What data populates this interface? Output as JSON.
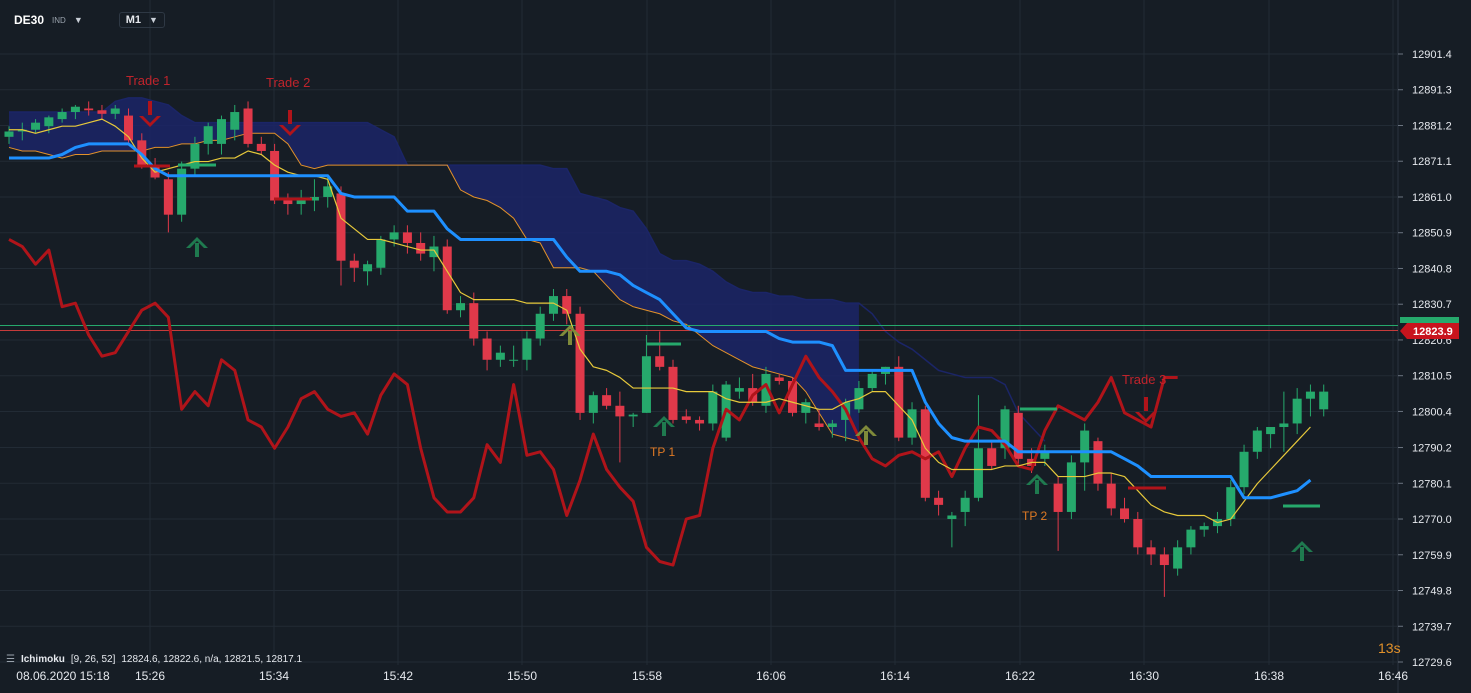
{
  "toolbar": {
    "symbol": "DE30",
    "symbol_type": "IND",
    "timeframe": "M1"
  },
  "indicator": {
    "name": "Ichimoku",
    "params": "[9, 26, 52]",
    "values": "12824.6,  12822.6,  n/a,  12821.5,  12817.1"
  },
  "countdown": "13s",
  "price_scale": {
    "labels": [
      "12901.4",
      "12891.3",
      "12881.2",
      "12871.1",
      "12861.0",
      "12850.9",
      "12840.8",
      "12830.7",
      "12820.6",
      "12810.5",
      "12800.4",
      "12790.2",
      "12780.1",
      "12770.0",
      "12759.9",
      "12749.8",
      "12739.7",
      "12729.6"
    ],
    "current_price": "12823.9"
  },
  "time_axis": {
    "labels": [
      "08.06.2020  15:18",
      "15:26",
      "15:34",
      "15:42",
      "15:50",
      "15:58",
      "16:06",
      "16:14",
      "16:22",
      "16:30",
      "16:38",
      "16:46"
    ]
  },
  "annotations": {
    "trade1": "Trade 1",
    "trade2": "Trade 2",
    "trade3": "Trade 3",
    "tp1": "TP 1",
    "tp2": "TP 2"
  },
  "colors": {
    "background": "#161d25",
    "grid": "#222b35",
    "bull": "#26a96c",
    "bear": "#e0394a",
    "tenkan": "#e7c93b",
    "kijun": "#1e90ff",
    "chikou": "#b0141a",
    "kumo_fill": "#1b2567",
    "kumo_line": "#e2912a",
    "buy_arrow": "#1f7a4f",
    "sell_arrow": "#b0141a",
    "trade_label": "#c0242c",
    "tp_label": "#e07a24",
    "current_line": "#c63b3b"
  },
  "chart_data": {
    "type": "candlestick",
    "ylim": [
      12725,
      12910
    ],
    "time_labels": [
      "15:18",
      "15:26",
      "15:34",
      "15:42",
      "15:50",
      "15:58",
      "16:06",
      "16:14",
      "16:22",
      "16:30",
      "16:38",
      "16:46"
    ],
    "candles_ohlc": [
      [
        12878.0,
        12881.0,
        12876.0,
        12879.5
      ],
      [
        12879.5,
        12882.0,
        12877.0,
        12880.0
      ],
      [
        12880.0,
        12883.0,
        12879.0,
        12882.0
      ],
      [
        12881.0,
        12884.0,
        12879.0,
        12883.5
      ],
      [
        12883.0,
        12886.0,
        12882.0,
        12885.0
      ],
      [
        12885.0,
        12887.0,
        12883.0,
        12886.5
      ],
      [
        12886.0,
        12888.0,
        12884.0,
        12885.5
      ],
      [
        12885.5,
        12887.0,
        12883.0,
        12884.5
      ],
      [
        12884.5,
        12887.0,
        12883.0,
        12886.0
      ],
      [
        12884.0,
        12886.0,
        12876.0,
        12877.0
      ],
      [
        12877.0,
        12879.0,
        12869.0,
        12870.0
      ],
      [
        12870.0,
        12872.0,
        12866.0,
        12866.5
      ],
      [
        12866.0,
        12868.0,
        12851.0,
        12856.0
      ],
      [
        12856.0,
        12871.0,
        12854.0,
        12869.0
      ],
      [
        12869.0,
        12878.0,
        12867.0,
        12876.0
      ],
      [
        12876.0,
        12882.0,
        12873.0,
        12881.0
      ],
      [
        12876.0,
        12884.0,
        12873.0,
        12883.0
      ],
      [
        12880.0,
        12887.0,
        12877.0,
        12885.0
      ],
      [
        12886.0,
        12888.0,
        12875.0,
        12876.0
      ],
      [
        12876.0,
        12878.0,
        12873.0,
        12874.0
      ],
      [
        12874.0,
        12876.0,
        12859.0,
        12860.0
      ],
      [
        12860.0,
        12862.0,
        12856.0,
        12859.0
      ],
      [
        12859.0,
        12863.0,
        12856.0,
        12860.0
      ],
      [
        12860.0,
        12866.0,
        12857.0,
        12861.0
      ],
      [
        12861.0,
        12867.0,
        12858.0,
        12864.0
      ],
      [
        12862.0,
        12864.0,
        12836.0,
        12843.0
      ],
      [
        12843.0,
        12845.0,
        12837.0,
        12841.0
      ],
      [
        12840.0,
        12843.0,
        12836.0,
        12842.0
      ],
      [
        12841.0,
        12850.0,
        12839.0,
        12849.0
      ],
      [
        12849.0,
        12853.0,
        12847.0,
        12851.0
      ],
      [
        12851.0,
        12853.0,
        12845.0,
        12848.0
      ],
      [
        12848.0,
        12851.0,
        12843.0,
        12845.0
      ],
      [
        12844.0,
        12850.0,
        12840.0,
        12847.0
      ],
      [
        12847.0,
        12849.0,
        12828.0,
        12829.0
      ],
      [
        12829.0,
        12833.0,
        12827.0,
        12831.0
      ],
      [
        12831.0,
        12834.0,
        12819.0,
        12821.0
      ],
      [
        12821.0,
        12823.0,
        12812.0,
        12815.0
      ],
      [
        12815.0,
        12819.0,
        12813.0,
        12817.0
      ],
      [
        12815.0,
        12819.0,
        12813.0,
        12815.0
      ],
      [
        12815.0,
        12823.0,
        12812.0,
        12821.0
      ],
      [
        12821.0,
        12830.0,
        12819.0,
        12828.0
      ],
      [
        12828.0,
        12835.0,
        12826.0,
        12833.0
      ],
      [
        12833.0,
        12835.0,
        12825.0,
        12828.0
      ],
      [
        12828.0,
        12830.0,
        12798.0,
        12800.0
      ],
      [
        12800.0,
        12806.0,
        12797.0,
        12805.0
      ],
      [
        12805.0,
        12807.0,
        12801.0,
        12802.0
      ],
      [
        12802.0,
        12806.0,
        12786.0,
        12799.0
      ],
      [
        12799.0,
        12800.0,
        12796.0,
        12799.5
      ],
      [
        12800.0,
        12822.0,
        12800.0,
        12816.0
      ],
      [
        12816.0,
        12823.0,
        12812.0,
        12813.0
      ],
      [
        12813.0,
        12815.0,
        12797.0,
        12798.0
      ],
      [
        12799.0,
        12801.0,
        12797.0,
        12798.0
      ],
      [
        12798.0,
        12799.0,
        12795.0,
        12797.0
      ],
      [
        12797.0,
        12808.0,
        12795.0,
        12806.0
      ],
      [
        12793.0,
        12809.0,
        12792.0,
        12808.0
      ],
      [
        12806.0,
        12810.0,
        12804.0,
        12807.0
      ],
      [
        12807.0,
        12811.0,
        12802.0,
        12803.0
      ],
      [
        12802.0,
        12813.0,
        12800.0,
        12811.0
      ],
      [
        12810.0,
        12811.0,
        12808.0,
        12809.0
      ],
      [
        12809.0,
        12810.0,
        12799.0,
        12800.0
      ],
      [
        12800.0,
        12804.0,
        12797.0,
        12803.0
      ],
      [
        12797.0,
        12801.0,
        12795.0,
        12796.0
      ],
      [
        12796.0,
        12798.0,
        12793.0,
        12797.0
      ],
      [
        12798.0,
        12804.0,
        12792.0,
        12803.0
      ],
      [
        12801.0,
        12809.0,
        12800.0,
        12807.0
      ],
      [
        12807.0,
        12812.0,
        12806.0,
        12811.0
      ],
      [
        12811.0,
        12813.0,
        12808.0,
        12813.0
      ],
      [
        12813.0,
        12816.0,
        12792.0,
        12793.0
      ],
      [
        12793.0,
        12803.0,
        12791.0,
        12801.0
      ],
      [
        12801.0,
        12802.0,
        12775.0,
        12776.0
      ],
      [
        12776.0,
        12778.0,
        12771.0,
        12774.0
      ],
      [
        12770.0,
        12772.0,
        12762.0,
        12771.0
      ],
      [
        12772.0,
        12778.0,
        12768.0,
        12776.0
      ],
      [
        12776.0,
        12805.0,
        12775.0,
        12790.0
      ],
      [
        12790.0,
        12792.0,
        12784.0,
        12785.0
      ],
      [
        12790.0,
        12802.0,
        12787.0,
        12801.0
      ],
      [
        12800.0,
        12802.0,
        12785.0,
        12787.0
      ],
      [
        12787.0,
        12790.0,
        12783.0,
        12785.0
      ],
      [
        12787.0,
        12791.0,
        12785.0,
        12789.0
      ],
      [
        12780.0,
        12782.0,
        12761.0,
        12772.0
      ],
      [
        12772.0,
        12788.0,
        12770.0,
        12786.0
      ],
      [
        12786.0,
        12797.0,
        12778.0,
        12795.0
      ],
      [
        12792.0,
        12793.0,
        12778.0,
        12780.0
      ],
      [
        12780.0,
        12783.0,
        12771.0,
        12773.0
      ],
      [
        12773.0,
        12776.0,
        12769.0,
        12770.0
      ],
      [
        12770.0,
        12772.0,
        12760.0,
        12762.0
      ],
      [
        12762.0,
        12764.0,
        12757.0,
        12760.0
      ],
      [
        12760.0,
        12762.0,
        12748.0,
        12757.0
      ],
      [
        12756.0,
        12764.0,
        12754.0,
        12762.0
      ],
      [
        12762.0,
        12768.0,
        12760.0,
        12767.0
      ],
      [
        12767.0,
        12769.0,
        12765.0,
        12768.0
      ],
      [
        12768.0,
        12772.0,
        12766.0,
        12770.0
      ],
      [
        12770.0,
        12781.0,
        12768.0,
        12779.0
      ],
      [
        12779.0,
        12791.0,
        12777.0,
        12789.0
      ],
      [
        12789.0,
        12796.0,
        12787.0,
        12795.0
      ],
      [
        12794.0,
        12796.0,
        12790.0,
        12796.0
      ],
      [
        12796.0,
        12806.0,
        12789.0,
        12797.0
      ],
      [
        12797.0,
        12807.0,
        12794.0,
        12804.0
      ],
      [
        12804.0,
        12808.0,
        12799.0,
        12806.0
      ],
      [
        12801.0,
        12808.0,
        12799.0,
        12806.0
      ]
    ],
    "tenkan": [
      12880,
      12880,
      12879,
      12880,
      12881,
      12881,
      12882,
      12883,
      12881,
      12878,
      12872,
      12868,
      12869,
      12870,
      12871,
      12871,
      12872,
      12872,
      12874,
      12873,
      12870,
      12868,
      12867,
      12867,
      12866,
      12855,
      12852,
      12849,
      12849,
      12848,
      12847,
      12846,
      12846,
      12840,
      12834,
      12832,
      12832,
      12832,
      12832,
      12831,
      12831,
      12831,
      12829,
      12818,
      12813,
      12812,
      12810,
      12807,
      12807,
      12807,
      12807,
      12806,
      12806,
      12806,
      12804,
      12803,
      12803,
      12803,
      12804,
      12803,
      12802,
      12801,
      12801,
      12803,
      12804,
      12806,
      12806,
      12802,
      12798,
      12790,
      12786,
      12784,
      12784,
      12784,
      12784,
      12785,
      12785,
      12786,
      12786,
      12782,
      12782,
      12782,
      12783,
      12783,
      12782,
      12778,
      12774,
      12772,
      12771,
      12771,
      12771,
      12769,
      12770,
      12775,
      12780,
      12784,
      12788,
      12792,
      12796
    ],
    "kijun": [
      12872,
      12872,
      12872,
      12872,
      12873,
      12875,
      12876,
      12876,
      12876,
      12876,
      12873,
      12869,
      12867,
      12867,
      12867,
      12867,
      12867,
      12867,
      12867,
      12867,
      12867,
      12867,
      12867,
      12867,
      12867,
      12862,
      12861,
      12861,
      12861,
      12861,
      12857,
      12857,
      12857,
      12852,
      12849,
      12849,
      12849,
      12849,
      12849,
      12849,
      12849,
      12849,
      12844,
      12840,
      12840,
      12840,
      12839,
      12836,
      12834,
      12832,
      12828,
      12824,
      12823,
      12823,
      12823,
      12823,
      12823,
      12823,
      12821,
      12820,
      12820,
      12820,
      12819,
      12812,
      12812,
      12812,
      12812,
      12812,
      12812,
      12803,
      12797,
      12793,
      12792,
      12792,
      12792,
      12792,
      12789,
      12789,
      12789,
      12789,
      12789,
      12789,
      12789,
      12789,
      12787,
      12785,
      12782,
      12782,
      12782,
      12782,
      12782,
      12782,
      12782,
      12776,
      12776,
      12776,
      12777,
      12778,
      12781
    ],
    "chikou": [
      12849,
      12847,
      12842,
      12846,
      12830,
      12831,
      12822,
      12816,
      12817,
      12823,
      12829,
      12831,
      12827,
      12801,
      12806,
      12802,
      12815,
      12812,
      12798,
      12796,
      12790,
      12796,
      12804,
      12806,
      12801,
      12799,
      12800,
      12794,
      12805,
      12811,
      12808,
      12790,
      12776,
      12772,
      12772,
      12776,
      12791,
      12786,
      12808,
      12788,
      12789,
      12784,
      12771,
      12781,
      12794,
      12784,
      12779,
      12775,
      12762,
      12758,
      12757,
      12770,
      12771,
      12790,
      12801,
      12798,
      12805,
      12808,
      12800,
      12808,
      12816,
      12810,
      12806,
      12801,
      12793,
      12787,
      12785,
      12788,
      12789,
      12787,
      12789,
      12782,
      12790,
      12796,
      12795,
      12791,
      12785,
      12784,
      12795,
      12802,
      12800,
      12798,
      12803,
      12810,
      12800,
      12798,
      12796,
      12810,
      12810
    ],
    "kumo_a": [
      12885,
      12885,
      12885,
      12885,
      12885,
      12885,
      12885,
      12885,
      12888,
      12889,
      12889,
      12888,
      12887,
      12884,
      12882,
      12882,
      12882,
      12882,
      12882,
      12882,
      12882,
      12882,
      12882,
      12882,
      12882,
      12882,
      12882,
      12882,
      12880,
      12878,
      12870,
      12870,
      12870,
      12870,
      12870,
      12870,
      12870,
      12870,
      12870,
      12870,
      12870,
      12869,
      12869,
      12862,
      12861,
      12860,
      12858,
      12857,
      12852,
      12845,
      12843,
      12843,
      12842,
      12840,
      12837,
      12835,
      12834,
      12834,
      12833,
      12833,
      12832,
      12832,
      12832,
      12831,
      12831,
      12828,
      12823,
      12820,
      12818,
      12815,
      12812,
      12811,
      12810,
      12810,
      12810,
      12808,
      12800,
      12796,
      12792
    ],
    "kumo_b": [
      12875,
      12874,
      12874,
      12873,
      12872,
      12873,
      12873,
      12874,
      12874,
      12874,
      12874,
      12875,
      12875,
      12876,
      12876,
      12877,
      12877,
      12878,
      12879,
      12879,
      12879,
      12876,
      12870,
      12869,
      12870,
      12870,
      12870,
      12870,
      12870,
      12870,
      12870,
      12870,
      12870,
      12870,
      12863,
      12861,
      12860,
      12858,
      12855,
      12849,
      12848,
      12841,
      12841,
      12841,
      12840,
      12836,
      12832,
      12830,
      12829,
      12828,
      12826,
      12825,
      12822,
      12819,
      12817,
      12815,
      12813,
      12812,
      12811,
      12810,
      12806,
      12800,
      12794,
      12793,
      12792
    ]
  }
}
